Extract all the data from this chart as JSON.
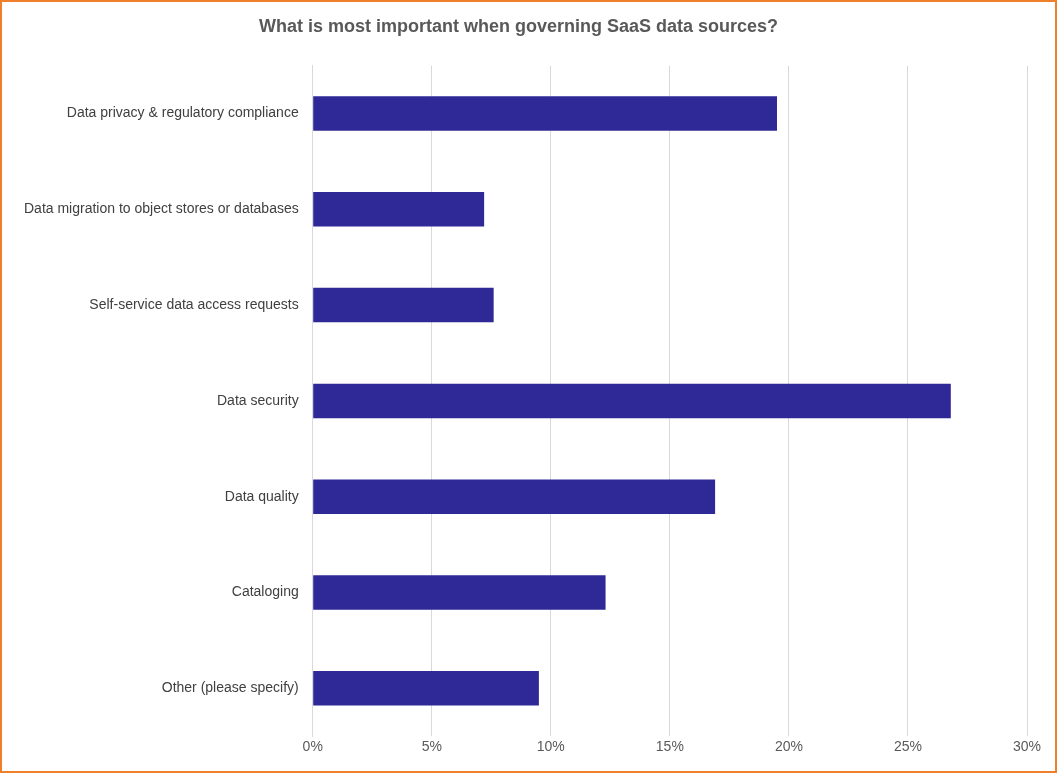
{
  "chart_data": {
    "type": "bar",
    "orientation": "horizontal",
    "title": "What is most important when governing SaaS data sources?",
    "categories": [
      "Data privacy & regulatory compliance",
      "Data migration to object stores or databases",
      "Self-service data access requests",
      "Data security",
      "Data quality",
      "Cataloging",
      "Other (please specify)"
    ],
    "values": [
      19.5,
      7.2,
      7.6,
      26.8,
      16.9,
      12.3,
      9.5
    ],
    "color": "#2e2996",
    "xlim": [
      0,
      30
    ],
    "xticks": [
      {
        "value": 0,
        "label": "0%"
      },
      {
        "value": 5,
        "label": "5%"
      },
      {
        "value": 10,
        "label": "10%"
      },
      {
        "value": 15,
        "label": "15%"
      },
      {
        "value": 20,
        "label": "20%"
      },
      {
        "value": 25,
        "label": "25%"
      },
      {
        "value": 30,
        "label": "30%"
      }
    ],
    "grid": "x",
    "legend": false
  }
}
